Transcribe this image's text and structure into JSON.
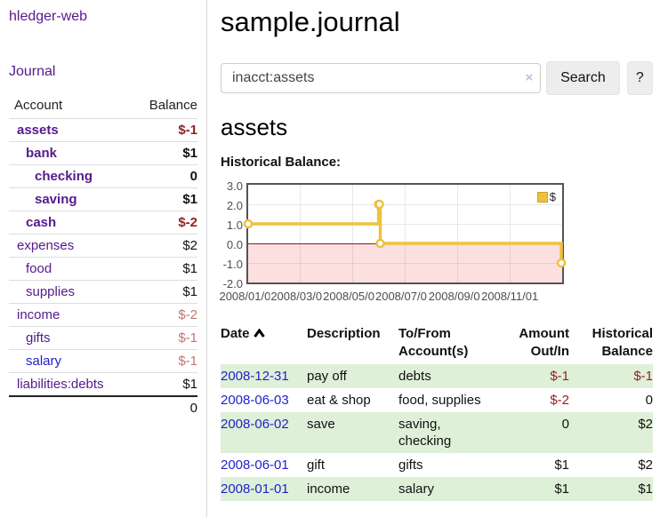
{
  "colors": {
    "link_purple": "#551a8b",
    "link_blue": "#2222cc",
    "negative_strong": "#941f1f",
    "negative_soft": "#bc7676",
    "row_green": "#dff0d8",
    "series_gold": "#edc240",
    "zero_line": "#8b1a1a"
  },
  "sidebar": {
    "app_title": "hledger-web",
    "journal_link": "Journal",
    "table": {
      "col_account": "Account",
      "col_balance": "Balance",
      "rows": [
        {
          "account": "assets",
          "balance": "$-1",
          "depth": 1,
          "bold": true,
          "neg": "strong"
        },
        {
          "account": "bank",
          "balance": "$1",
          "depth": 2,
          "bold": true
        },
        {
          "account": "checking",
          "balance": "0",
          "depth": 3,
          "bold": true
        },
        {
          "account": "saving",
          "balance": "$1",
          "depth": 3,
          "bold": true
        },
        {
          "account": "cash",
          "balance": "$-2",
          "depth": 2,
          "bold": true,
          "neg": "strong"
        },
        {
          "account": "expenses",
          "balance": "$2",
          "depth": 1
        },
        {
          "account": "food",
          "balance": "$1",
          "depth": 2
        },
        {
          "account": "supplies",
          "balance": "$1",
          "depth": 2
        },
        {
          "account": "income",
          "balance": "$-2",
          "depth": 1,
          "neg": "soft"
        },
        {
          "account": "gifts",
          "balance": "$-1",
          "depth": 2,
          "neg": "soft"
        },
        {
          "account": "salary",
          "balance": "$-1",
          "depth": 2,
          "neg": "soft",
          "link": "blue"
        },
        {
          "account": "liabilities:debts",
          "balance": "$1",
          "depth": 1
        }
      ],
      "total": "0"
    }
  },
  "header": {
    "title": "sample.journal"
  },
  "search": {
    "query": "inacct:assets",
    "clear_icon": "×",
    "search_label": "Search",
    "help_label": "?"
  },
  "account_page": {
    "title": "assets",
    "chart_label": "Historical Balance:"
  },
  "chart_data": {
    "type": "line",
    "step": true,
    "title": "Historical Balance:",
    "series": [
      {
        "name": "$",
        "color": "#edc240",
        "points": [
          [
            "2008-01-01",
            1
          ],
          [
            "2008-06-01",
            2
          ],
          [
            "2008-06-02",
            2
          ],
          [
            "2008-06-03",
            0
          ],
          [
            "2008-12-31",
            -1
          ]
        ]
      }
    ],
    "ylim": [
      -2,
      3
    ],
    "yticks": [
      "3.0",
      "2.0",
      "1.0",
      "0.0",
      "-1.0",
      "-2.0"
    ],
    "xticks": [
      "2008/01/01",
      "2008/03/01",
      "2008/05/01",
      "2008/07/01",
      "2008/09/01",
      "2008/11/01"
    ],
    "x_start": "2008-01-01",
    "x_days": 366,
    "grid": true,
    "legend_position": "top-right",
    "negative_region": true
  },
  "register": {
    "columns": {
      "date": "Date",
      "description": "Description",
      "accounts": "To/From Account(s)",
      "amount": "Amount Out/In",
      "balance": "Historical Balance"
    },
    "rows": [
      {
        "date": "2008-12-31",
        "description": "pay off",
        "accounts": "debts",
        "amount": "$-1",
        "amount_neg": true,
        "balance": "$-1",
        "balance_neg": true
      },
      {
        "date": "2008-06-03",
        "description": "eat & shop",
        "accounts": "food, supplies",
        "amount": "$-2",
        "amount_neg": true,
        "balance": "0"
      },
      {
        "date": "2008-06-02",
        "description": "save",
        "accounts": "saving,\nchecking",
        "amount": "0",
        "balance": "$2"
      },
      {
        "date": "2008-06-01",
        "description": "gift",
        "accounts": "gifts",
        "amount": "$1",
        "balance": "$2"
      },
      {
        "date": "2008-01-01",
        "description": "income",
        "accounts": "salary",
        "amount": "$1",
        "balance": "$1"
      }
    ]
  }
}
